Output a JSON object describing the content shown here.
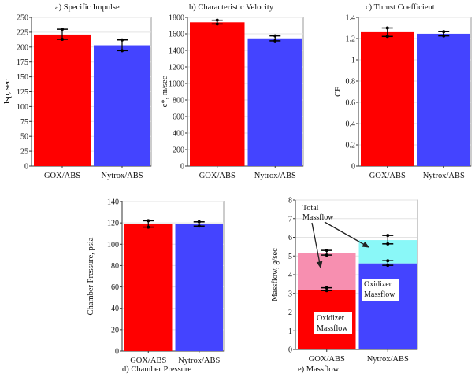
{
  "colors": {
    "gox": "#ff0000",
    "nytrox": "#4444ff",
    "gox_total": "#f78fb0",
    "nytrox_total": "#8af8f8"
  },
  "chart_data": [
    {
      "id": "a",
      "type": "bar",
      "title": "a) Specific Impulse",
      "ylabel": "Isp, sec",
      "categories": [
        "GOX/ABS",
        "Nytrox/ABS"
      ],
      "values": [
        221,
        203
      ],
      "error_low": [
        213,
        194
      ],
      "error_high": [
        230,
        212
      ],
      "ylim": [
        0,
        250
      ],
      "yticks": [
        "0",
        "25",
        "50",
        "75",
        "100",
        "125",
        "150",
        "175",
        "200",
        "225",
        "250"
      ],
      "grid": true
    },
    {
      "id": "b",
      "type": "bar",
      "title": "b) Characteristic Velocity",
      "ylabel": "c*, m/sec",
      "categories": [
        "GOX/ABS",
        "Nytrox/ABS"
      ],
      "values": [
        1740,
        1545
      ],
      "error_low": [
        1720,
        1515
      ],
      "error_high": [
        1765,
        1575
      ],
      "ylim": [
        0,
        1800
      ],
      "yticks": [
        "0",
        "200",
        "400",
        "600",
        "800",
        "1000",
        "1200",
        "1400",
        "1600",
        "1800"
      ],
      "grid": true
    },
    {
      "id": "c",
      "type": "bar",
      "title": "c) Thrust Coefficient",
      "ylabel": "CF",
      "categories": [
        "GOX/ABS",
        "Nytrox/ABS"
      ],
      "values": [
        1.26,
        1.245
      ],
      "error_low": [
        1.22,
        1.225
      ],
      "error_high": [
        1.3,
        1.265
      ],
      "ylim": [
        0,
        1.4
      ],
      "yticks": [
        "0",
        "0.2",
        "0.4",
        "0.6",
        "0.8",
        "1",
        "1.2",
        "1.4"
      ],
      "grid": true
    },
    {
      "id": "d",
      "type": "bar",
      "title": "d) Chamber Pressure",
      "ylabel": "Chamber Pressure, psia",
      "categories": [
        "GOX/ABS",
        "Nytrox/ABS"
      ],
      "values": [
        119,
        119
      ],
      "error_low": [
        116,
        117
      ],
      "error_high": [
        122,
        121
      ],
      "ylim": [
        0,
        140
      ],
      "yticks": [
        "0",
        "20",
        "40",
        "60",
        "80",
        "100",
        "120",
        "140"
      ],
      "grid": true
    },
    {
      "id": "e",
      "type": "bar",
      "title": "e) Massflow",
      "ylabel": "Massflow, g/sec",
      "categories": [
        "GOX/ABS",
        "Nytrox/ABS"
      ],
      "series": [
        {
          "name": "Oxidizer Massflow",
          "values": [
            3.2,
            4.6
          ],
          "error_low": [
            3.15,
            4.5
          ],
          "error_high": [
            3.3,
            4.75
          ]
        },
        {
          "name": "Total Massflow",
          "values": [
            5.15,
            5.85
          ],
          "error_low": [
            5.05,
            5.65
          ],
          "error_high": [
            5.3,
            6.1
          ]
        }
      ],
      "annotations": [
        "Total Massflow",
        "Oxidizer Massflow",
        "Oxidizer Massflow"
      ],
      "ylim": [
        0,
        8
      ],
      "yticks": [
        "0",
        "1",
        "2",
        "3",
        "4",
        "5",
        "6",
        "7",
        "8"
      ],
      "grid": true
    }
  ]
}
